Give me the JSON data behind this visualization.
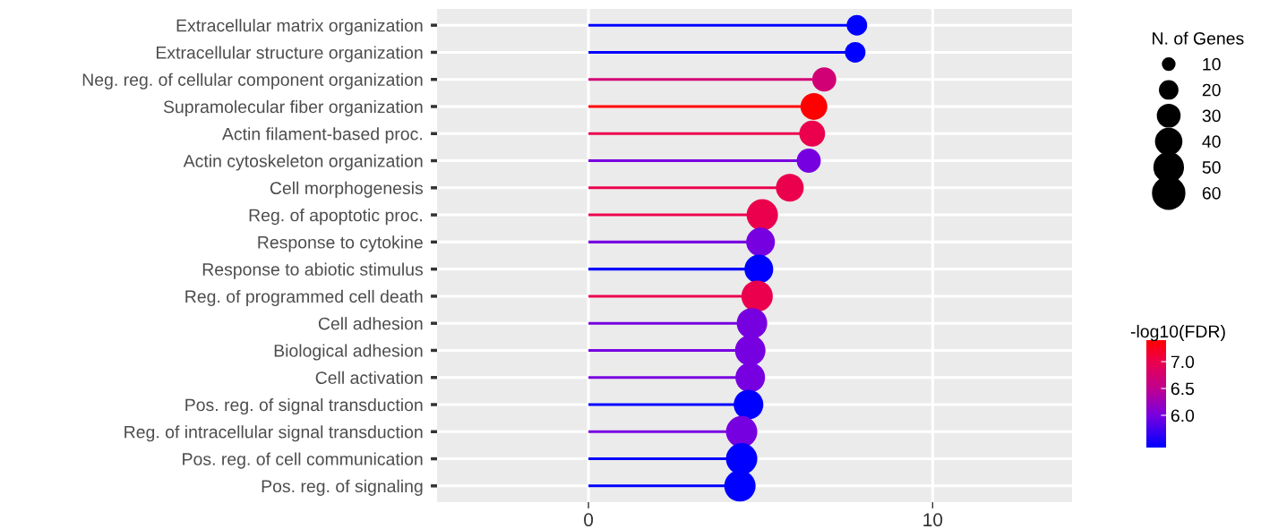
{
  "chart_data": {
    "type": "lollipop",
    "categories": [
      "Extracellular matrix organization",
      "Extracellular structure organization",
      "Neg. reg. of cellular component organization",
      "Supramolecular fiber organization",
      "Actin filament-based proc.",
      "Actin cytoskeleton organization",
      "Cell morphogenesis",
      "Reg. of apoptotic proc.",
      "Response to cytokine",
      "Response to abiotic stimulus",
      "Reg. of programmed cell death",
      "Cell adhesion",
      "Biological adhesion",
      "Cell activation",
      "Pos. reg. of signal transduction",
      "Reg. of intracellular signal transduction",
      "Pos. reg. of cell communication",
      "Pos. reg. of signaling"
    ],
    "values": [
      7.8,
      7.75,
      6.85,
      6.55,
      6.5,
      6.4,
      5.85,
      5.05,
      5.0,
      4.95,
      4.9,
      4.75,
      4.7,
      4.7,
      4.65,
      4.45,
      4.45,
      4.4
    ],
    "sizes": [
      25,
      25,
      34,
      42,
      39,
      34,
      45,
      57,
      48,
      48,
      57,
      54,
      54,
      51,
      51,
      57,
      57,
      57
    ],
    "size_legend": [
      10,
      20,
      30,
      40,
      50,
      60
    ],
    "legend_title": "N. of Genes",
    "cvalues": [
      5.4,
      5.4,
      6.7,
      7.4,
      7.0,
      6.0,
      7.0,
      7.0,
      6.0,
      5.4,
      7.0,
      6.0,
      6.0,
      6.0,
      5.4,
      6.0,
      5.4,
      5.4
    ],
    "clim": [
      5.4,
      7.4
    ],
    "cticks": [
      {
        "value": 6.0,
        "label": "6.0"
      },
      {
        "value": 6.5,
        "label": "6.5"
      },
      {
        "value": 7.0,
        "label": "7.0"
      }
    ],
    "clabel": "-log10(FDR)",
    "xlim": [
      -4.4,
      14.05
    ],
    "xticks": [
      0,
      10
    ],
    "orientation": "horizontal",
    "grid": true
  }
}
